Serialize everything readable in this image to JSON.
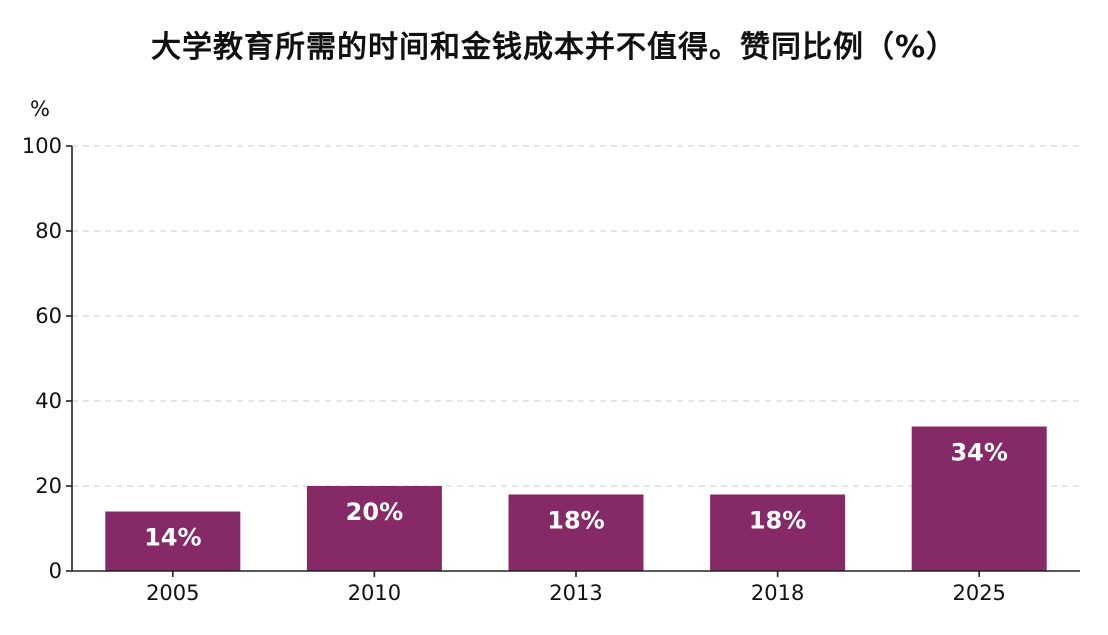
{
  "chart_data": {
    "type": "bar",
    "title": "大学教育所需的时间和金钱成本并不值得。赞同比例（%）",
    "ylabel": "%",
    "xlabel": "",
    "categories": [
      "2005",
      "2010",
      "2013",
      "2018",
      "2025"
    ],
    "values": [
      14,
      20,
      18,
      18,
      34
    ],
    "value_labels": [
      "14%",
      "20%",
      "18%",
      "18%",
      "34%"
    ],
    "ylim": [
      0,
      100
    ],
    "yticks": [
      0,
      20,
      40,
      60,
      80,
      100
    ],
    "grid": true,
    "legend": "none",
    "bar_color": "#852a66"
  }
}
